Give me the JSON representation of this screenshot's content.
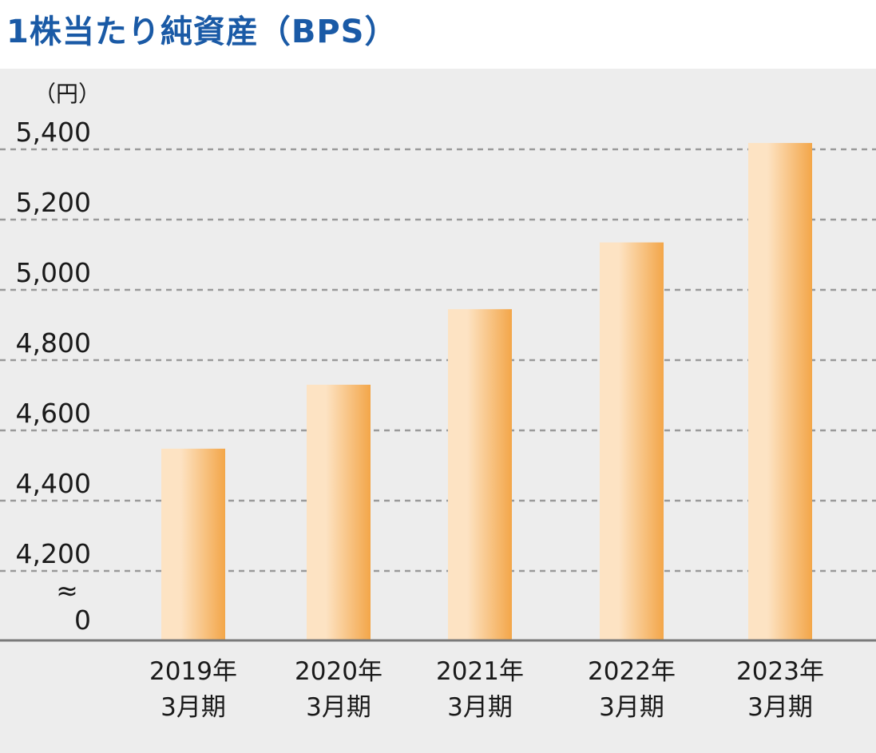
{
  "title": "1株当たり純資産（BPS）",
  "chart_data": {
    "type": "bar",
    "title": "1株当たり純資産（BPS）",
    "ylabel": "（円）",
    "categories": [
      [
        "2019年",
        "3月期"
      ],
      [
        "2020年",
        "3月期"
      ],
      [
        "2021年",
        "3月期"
      ],
      [
        "2022年",
        "3月期"
      ],
      [
        "2023年",
        "3月期"
      ]
    ],
    "values": [
      4548,
      4730,
      4945,
      5135,
      5418
    ],
    "y_ticks": [
      {
        "value": 5400,
        "label": "5,400"
      },
      {
        "value": 5200,
        "label": "5,200"
      },
      {
        "value": 5000,
        "label": "5,000"
      },
      {
        "value": 4800,
        "label": "4,800"
      },
      {
        "value": 4600,
        "label": "4,600"
      },
      {
        "value": 4400,
        "label": "4,400"
      },
      {
        "value": 4200,
        "label": "4,200"
      }
    ],
    "baseline_label": "0",
    "axis_break": "≈",
    "ylim": [
      4200,
      5400
    ],
    "grid": true,
    "bar_color_light": "#fde3c3",
    "bar_color_dark": "#f3a649",
    "grid_color": "#9a9a9a",
    "axis_color": "#7a7a7a"
  }
}
